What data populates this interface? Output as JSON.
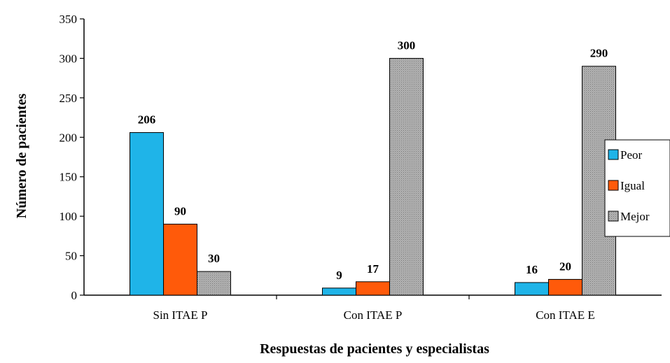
{
  "chart_data": {
    "type": "bar",
    "categories": [
      "Sin ITAE P",
      "Con ITAE P",
      "Con ITAE E"
    ],
    "series": [
      {
        "name": "Peor",
        "values": [
          206,
          9,
          16
        ],
        "color": "#1fb4e8",
        "pattern": "solid"
      },
      {
        "name": "Igual",
        "values": [
          90,
          17,
          20
        ],
        "color": "#ff5a0a",
        "pattern": "solid"
      },
      {
        "name": "Mejor",
        "values": [
          30,
          300,
          290
        ],
        "color": "#a6a6a6",
        "pattern": "dotted"
      }
    ],
    "xlabel": "Respuestas de pacientes y especialistas",
    "ylabel": "Número de pacientes",
    "ylim": [
      0,
      350
    ],
    "yticks": [
      0,
      50,
      100,
      150,
      200,
      250,
      300,
      350
    ],
    "legend": "right",
    "grid": false
  }
}
